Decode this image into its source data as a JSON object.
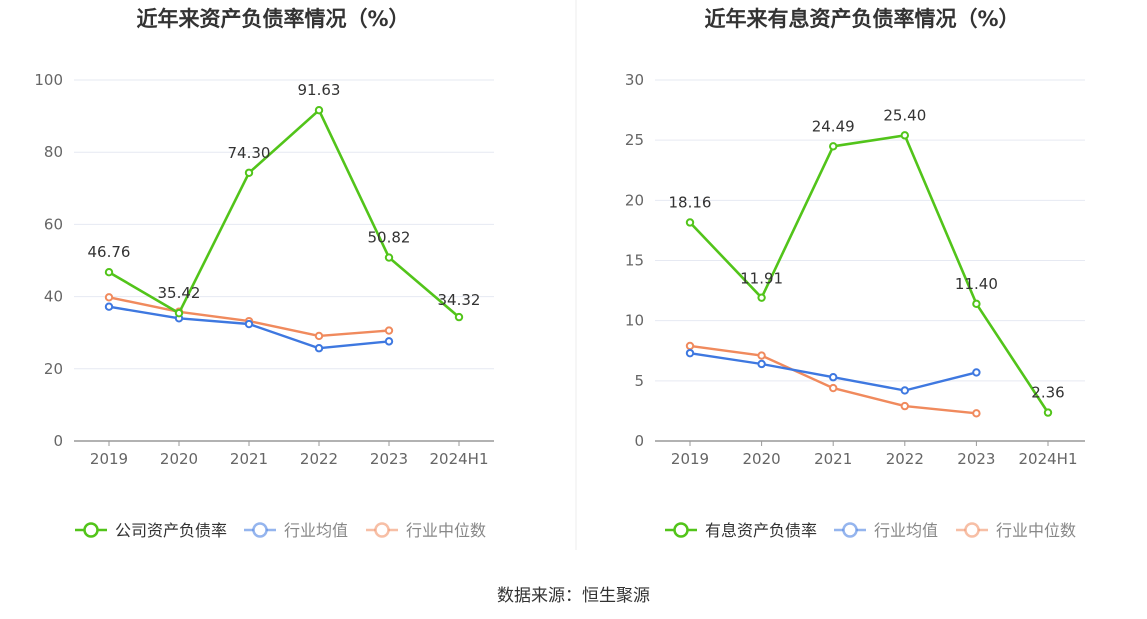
{
  "chart_data": [
    {
      "type": "line",
      "title": "近年来资产负债率情况（%）",
      "categories": [
        "2019",
        "2020",
        "2021",
        "2022",
        "2023",
        "2024H1"
      ],
      "ylim": [
        0,
        100
      ],
      "yticks": [
        0,
        20,
        40,
        60,
        80,
        100
      ],
      "ytick_labels": [
        "0",
        "20",
        "40",
        "60",
        "80",
        "100"
      ],
      "grid": true,
      "legend_position": "bottom",
      "series": [
        {
          "name": "公司资产负债率",
          "color": "#52C41A",
          "values": [
            46.76,
            35.42,
            74.3,
            91.63,
            50.82,
            34.32
          ],
          "labels": [
            "46.76",
            "35.42",
            "74.30",
            "91.63",
            "50.82",
            "34.32"
          ]
        },
        {
          "name": "行业均值",
          "color": "#3E78E0",
          "values": [
            37.2,
            34.0,
            32.4,
            25.7,
            27.6,
            null
          ]
        },
        {
          "name": "行业中位数",
          "color": "#F08A5D",
          "values": [
            39.8,
            35.8,
            33.2,
            29.1,
            30.6,
            null
          ]
        }
      ]
    },
    {
      "type": "line",
      "title": "近年来有息资产负债率情况（%）",
      "categories": [
        "2019",
        "2020",
        "2021",
        "2022",
        "2023",
        "2024H1"
      ],
      "ylim": [
        0,
        30
      ],
      "yticks": [
        0,
        5,
        10,
        15,
        20,
        25,
        30
      ],
      "ytick_labels": [
        "0",
        "5",
        "10",
        "15",
        "20",
        "25",
        "30"
      ],
      "grid": true,
      "legend_position": "bottom",
      "series": [
        {
          "name": "有息资产负债率",
          "color": "#52C41A",
          "values": [
            18.16,
            11.91,
            24.49,
            25.4,
            11.4,
            2.36
          ],
          "labels": [
            "18.16",
            "11.91",
            "24.49",
            "25.40",
            "11.40",
            "2.36"
          ]
        },
        {
          "name": "行业均值",
          "color": "#3E78E0",
          "values": [
            7.3,
            6.4,
            5.3,
            4.2,
            5.7,
            null
          ]
        },
        {
          "name": "行业中位数",
          "color": "#F08A5D",
          "values": [
            7.9,
            7.1,
            4.4,
            2.9,
            2.3,
            null
          ]
        }
      ]
    }
  ],
  "source": "数据来源：恒生聚源",
  "colors": {
    "axis": "#999999",
    "grid": "#E6E9F2",
    "text": "#666666",
    "title": "#333333",
    "divider": "#EEEEEE"
  }
}
